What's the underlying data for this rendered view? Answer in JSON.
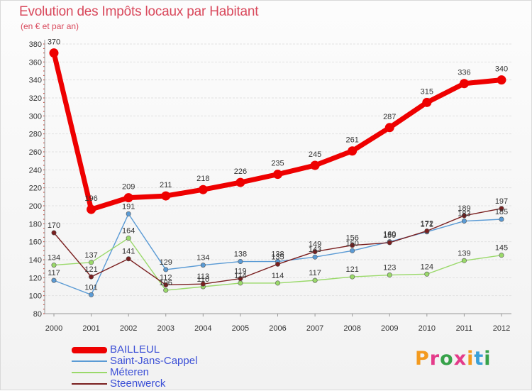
{
  "title": "Evolution des Impôts locaux par Habitant",
  "subtitle": "(en € et par an)",
  "logo": {
    "text": "Proxiti",
    "colors": [
      "#f39a1e",
      "#e43b8a",
      "#37a24a",
      "#e43b8a",
      "#f39a1e",
      "#3aa0d8",
      "#37a24a"
    ]
  },
  "chart_data": {
    "type": "line",
    "title": "Evolution des Impôts locaux par Habitant",
    "subtitle": "(en € et par an)",
    "x": [
      "2000",
      "2001",
      "2002",
      "2003",
      "2004",
      "2005",
      "2006",
      "2007",
      "2008",
      "2009",
      "2010",
      "2011",
      "2012"
    ],
    "y_ticks": [
      "80",
      "100",
      "120",
      "140",
      "160",
      "180",
      "200",
      "220",
      "240",
      "260",
      "280",
      "300",
      "320",
      "340",
      "360",
      "380"
    ],
    "ylim": [
      80,
      380
    ],
    "grid": "horizontal",
    "legend_position": "bottom-left",
    "series": [
      {
        "name": "BAILLEUL",
        "color": "#ee0000",
        "values": [
          370,
          196,
          209,
          211,
          218,
          226,
          235,
          245,
          261,
          287,
          315,
          336,
          340
        ]
      },
      {
        "name": "Saint-Jans-Cappel",
        "color": "#5b9bd5",
        "values": [
          117,
          101,
          191,
          129,
          134,
          138,
          138,
          143,
          150,
          160,
          171,
          183,
          185
        ]
      },
      {
        "name": "Méteren",
        "color": "#9ad96a",
        "values": [
          134,
          137,
          164,
          106,
          110,
          114,
          114,
          117,
          121,
          123,
          124,
          139,
          145
        ]
      },
      {
        "name": "Steenwerck",
        "color": "#7a1f1f",
        "values": [
          170,
          121,
          141,
          112,
          113,
          119,
          135,
          149,
          156,
          159,
          172,
          189,
          197
        ]
      }
    ]
  }
}
